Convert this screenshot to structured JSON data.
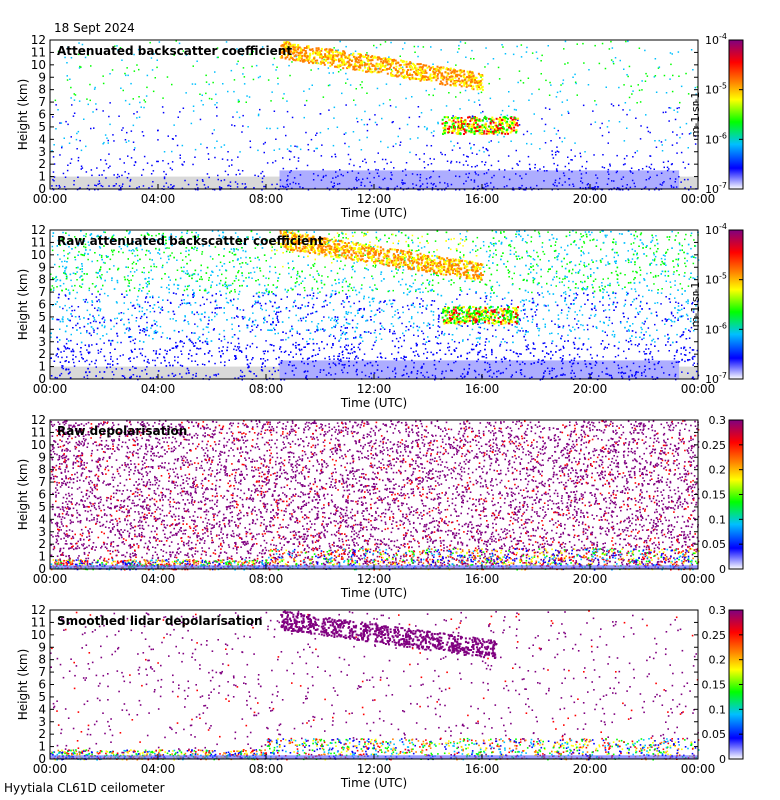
{
  "header": {
    "date": "18 Sept 2024"
  },
  "footer": {
    "site": "Hyytiala CL61D ceilometer"
  },
  "colors": {
    "na": "#d9d9d9",
    "scale": [
      "#ffffff",
      "#0000ff",
      "#00c0ff",
      "#00ff00",
      "#ffff00",
      "#ff8000",
      "#ff0000",
      "#800080"
    ]
  },
  "chart_data": [
    {
      "type": "heatmap",
      "title": "Attenuated backscatter coefficient",
      "xlabel": "Time (UTC)",
      "ylabel": "Height (km)",
      "xticks": [
        "00:00",
        "04:00",
        "08:00",
        "12:00",
        "16:00",
        "20:00",
        "00:00"
      ],
      "yticks": [
        "0",
        "1",
        "2",
        "3",
        "4",
        "5",
        "6",
        "7",
        "8",
        "9",
        "10",
        "11",
        "12"
      ],
      "xlim_hours": [
        0,
        24
      ],
      "ylim": [
        0,
        12
      ],
      "colorbar": {
        "scale": "log",
        "ticks": [
          "10-7",
          "10-6",
          "10-5",
          "10-4"
        ],
        "unit": "m-1 sr-1"
      }
    },
    {
      "type": "heatmap",
      "title": "Raw attenuated backscatter coefficient",
      "xlabel": "Time (UTC)",
      "ylabel": "Height (km)",
      "xticks": [
        "00:00",
        "04:00",
        "08:00",
        "12:00",
        "16:00",
        "20:00",
        "00:00"
      ],
      "yticks": [
        "0",
        "1",
        "2",
        "3",
        "4",
        "5",
        "6",
        "7",
        "8",
        "9",
        "10",
        "11",
        "12"
      ],
      "xlim_hours": [
        0,
        24
      ],
      "ylim": [
        0,
        12
      ],
      "colorbar": {
        "scale": "log",
        "ticks": [
          "10-7",
          "10-6",
          "10-5",
          "10-4"
        ],
        "unit": "m-1 sr-1"
      }
    },
    {
      "type": "heatmap",
      "title": "Raw depolarisation",
      "xlabel": "Time (UTC)",
      "ylabel": "Height (km)",
      "xticks": [
        "00:00",
        "04:00",
        "08:00",
        "12:00",
        "16:00",
        "20:00",
        "00:00"
      ],
      "yticks": [
        "0",
        "1",
        "2",
        "3",
        "4",
        "5",
        "6",
        "7",
        "8",
        "9",
        "10",
        "11",
        "12"
      ],
      "xlim_hours": [
        0,
        24
      ],
      "ylim": [
        0,
        12
      ],
      "colorbar": {
        "scale": "linear",
        "ticks": [
          "0",
          "0.05",
          "0.1",
          "0.15",
          "0.2",
          "0.25",
          "0.3"
        ],
        "unit": ""
      }
    },
    {
      "type": "heatmap",
      "title": "Smoothed lidar depolarisation",
      "xlabel": "Time (UTC)",
      "ylabel": "Height (km)",
      "xticks": [
        "00:00",
        "04:00",
        "08:00",
        "12:00",
        "16:00",
        "20:00",
        "00:00"
      ],
      "yticks": [
        "0",
        "1",
        "2",
        "3",
        "4",
        "5",
        "6",
        "7",
        "8",
        "9",
        "10",
        "11",
        "12"
      ],
      "xlim_hours": [
        0,
        24
      ],
      "ylim": [
        0,
        12
      ],
      "colorbar": {
        "scale": "linear",
        "ticks": [
          "0",
          "0.05",
          "0.1",
          "0.15",
          "0.2",
          "0.25",
          "0.3"
        ],
        "unit": ""
      }
    }
  ]
}
